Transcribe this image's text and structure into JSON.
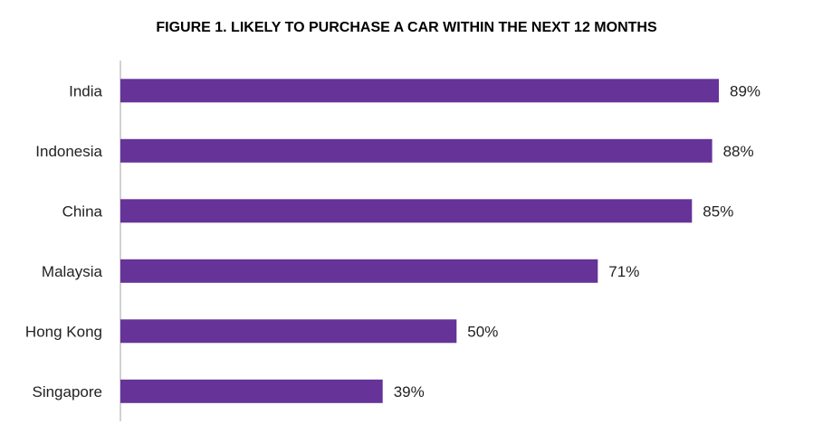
{
  "chart_data": {
    "type": "bar",
    "orientation": "horizontal",
    "title": "FIGURE 1. LIKELY TO PURCHASE A CAR WITHIN THE NEXT 12 MONTHS",
    "categories": [
      "India",
      "Indonesia",
      "China",
      "Malaysia",
      "Hong Kong",
      "Singapore"
    ],
    "values": [
      89,
      88,
      85,
      71,
      50,
      39
    ],
    "value_labels": [
      "89%",
      "88%",
      "85%",
      "71%",
      "50%",
      "39%"
    ],
    "unit": "%",
    "xlim": [
      0,
      100
    ],
    "grid": false,
    "legend": "none",
    "bar_color": "#663399",
    "axis_color": "#a6a6a6"
  }
}
